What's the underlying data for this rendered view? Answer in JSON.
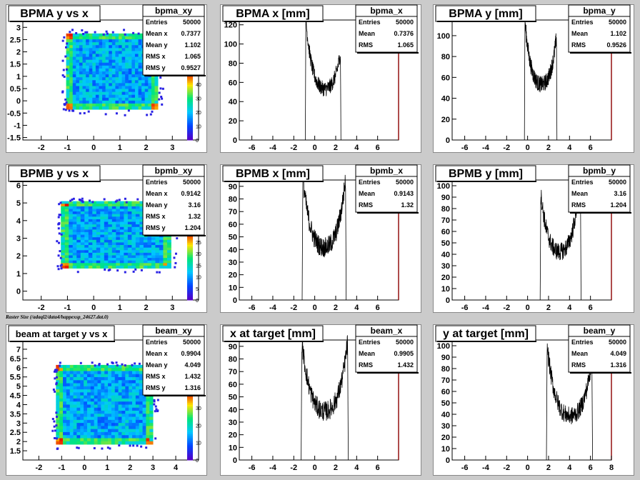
{
  "canvas_label": "Raster Size (/adaql2/data4/happexsp_24627.dat.0)",
  "chart_data": [
    {
      "type": "heatmap",
      "title": "BPMA y vs x",
      "stats_name": "bpma_xy",
      "stats": [
        [
          "Entries",
          "50000"
        ],
        [
          "Mean x",
          "0.7377"
        ],
        [
          "Mean y",
          "1.102"
        ],
        [
          "RMS x",
          "1.065"
        ],
        [
          "RMS y",
          "0.9527"
        ]
      ],
      "xlim": [
        -2.7,
        4.0
      ],
      "ylim": [
        -1.6,
        3.3
      ],
      "xticks": [
        -2,
        -1,
        0,
        1,
        2,
        3
      ],
      "yticks": [
        -1.5,
        -1,
        -0.5,
        0,
        0.5,
        1,
        1.5,
        2,
        2.5,
        3
      ],
      "region": {
        "x": [
          -1.05,
          2.45
        ],
        "y": [
          -0.35,
          2.75
        ]
      },
      "colorbar": {
        "max": 50,
        "ticks": [
          0,
          10,
          20,
          30,
          40
        ]
      }
    },
    {
      "type": "line",
      "title": "BPMA x [mm]",
      "stats_name": "bpma_x",
      "stats": [
        [
          "Entries",
          "50000"
        ],
        [
          "Mean",
          "0.7376"
        ],
        [
          "RMS",
          "1.065"
        ]
      ],
      "xlim": [
        -7.2,
        8.0
      ],
      "ylim": [
        0,
        125
      ],
      "xticks": [
        -6,
        -4,
        -2,
        0,
        2,
        4,
        6
      ],
      "yticks": [
        0,
        20,
        40,
        60,
        80,
        100,
        120
      ],
      "profile": {
        "start": -0.9,
        "end": 2.5,
        "peak_left": 115,
        "peak_right": 85,
        "valley": 45,
        "noise": 8
      }
    },
    {
      "type": "line",
      "title": "BPMA y [mm]",
      "stats_name": "bpma_y",
      "stats": [
        [
          "Entries",
          "50000"
        ],
        [
          "Mean",
          "1.102"
        ],
        [
          "RMS",
          "0.9526"
        ]
      ],
      "xlim": [
        -7.2,
        8.0
      ],
      "ylim": [
        0,
        115
      ],
      "xticks": [
        -6,
        -4,
        -2,
        0,
        2,
        4,
        6
      ],
      "yticks": [
        0,
        20,
        40,
        60,
        80,
        100
      ],
      "profile": {
        "start": -0.3,
        "end": 2.8,
        "peak_left": 105,
        "peak_right": 92,
        "valley": 45,
        "noise": 8
      }
    },
    {
      "type": "heatmap",
      "title": "BPMB y vs x",
      "stats_name": "bpmb_xy",
      "stats": [
        [
          "Entries",
          "50000"
        ],
        [
          "Mean x",
          "0.9142"
        ],
        [
          "Mean y",
          "3.16"
        ],
        [
          "RMS x",
          "1.32"
        ],
        [
          "RMS y",
          "1.204"
        ]
      ],
      "xlim": [
        -2.7,
        4.0
      ],
      "ylim": [
        -0.5,
        6.3
      ],
      "xticks": [
        -2,
        -1,
        0,
        1,
        2,
        3
      ],
      "yticks": [
        0,
        1,
        2,
        3,
        4,
        5,
        6
      ],
      "region": {
        "x": [
          -1.25,
          2.95
        ],
        "y": [
          1.3,
          5.1
        ]
      },
      "colorbar": {
        "max": 30,
        "ticks": [
          0,
          5,
          10,
          15,
          20,
          25
        ]
      }
    },
    {
      "type": "line",
      "title": "BPMB x [mm]",
      "stats_name": "bpmb_x",
      "stats": [
        [
          "Entries",
          "50000"
        ],
        [
          "Mean",
          "0.9143"
        ],
        [
          "RMS",
          "1.32"
        ]
      ],
      "xlim": [
        -7.2,
        8.0
      ],
      "ylim": [
        0,
        95
      ],
      "xticks": [
        -6,
        -4,
        -2,
        0,
        2,
        4,
        6
      ],
      "yticks": [
        0,
        10,
        20,
        30,
        40,
        50,
        60,
        70,
        80,
        90
      ],
      "profile": {
        "start": -1.2,
        "end": 3.0,
        "peak_left": 88,
        "peak_right": 88,
        "valley": 33,
        "noise": 8
      }
    },
    {
      "type": "line",
      "title": "BPMB y [mm]",
      "stats_name": "bpmb_y",
      "stats": [
        [
          "Entries",
          "50000"
        ],
        [
          "Mean",
          "3.16"
        ],
        [
          "RMS",
          "1.204"
        ]
      ],
      "xlim": [
        -7.2,
        8.0
      ],
      "ylim": [
        0,
        105
      ],
      "xticks": [
        -6,
        -4,
        -2,
        0,
        2,
        4,
        6
      ],
      "yticks": [
        0,
        10,
        20,
        30,
        40,
        50,
        60,
        70,
        80,
        90,
        100
      ],
      "profile": {
        "start": 1.2,
        "end": 5.1,
        "peak_left": 85,
        "peak_right": 100,
        "valley": 33,
        "noise": 8
      }
    },
    {
      "type": "heatmap",
      "title": "beam at target y vs x",
      "stats_name": "beam_xy",
      "stats": [
        [
          "Entries",
          "50000"
        ],
        [
          "Mean x",
          "0.9904"
        ],
        [
          "Mean y",
          "4.049"
        ],
        [
          "RMS x",
          "1.432"
        ],
        [
          "RMS y",
          "1.316"
        ]
      ],
      "xlim": [
        -2.7,
        5.0
      ],
      "ylim": [
        1.0,
        7.5
      ],
      "xticks": [
        -2,
        -1,
        0,
        1,
        2,
        3,
        4
      ],
      "yticks": [
        1.5,
        2,
        2.5,
        3,
        3.5,
        4,
        4.5,
        5,
        5.5,
        6,
        6.5,
        7
      ],
      "region": {
        "x": [
          -1.25,
          3.0
        ],
        "y": [
          1.85,
          6.15
        ]
      },
      "colorbar": {
        "max": 40,
        "ticks": [
          0,
          10,
          20,
          30
        ]
      }
    },
    {
      "type": "line",
      "title": "x at target [mm]",
      "stats_name": "beam_x",
      "stats": [
        [
          "Entries",
          "50000"
        ],
        [
          "Mean",
          "0.9905"
        ],
        [
          "RMS",
          "1.432"
        ]
      ],
      "xlim": [
        -7.2,
        8.0
      ],
      "ylim": [
        0,
        95
      ],
      "xticks": [
        -6,
        -4,
        -2,
        0,
        2,
        4,
        6
      ],
      "yticks": [
        0,
        10,
        20,
        30,
        40,
        50,
        60,
        70,
        80,
        90
      ],
      "profile": {
        "start": -1.3,
        "end": 3.2,
        "peak_left": 85,
        "peak_right": 85,
        "valley": 30,
        "noise": 8
      }
    },
    {
      "type": "line",
      "title": "y at target [mm]",
      "stats_name": "beam_y",
      "stats": [
        [
          "Entries",
          "50000"
        ],
        [
          "Mean",
          "4.049"
        ],
        [
          "RMS",
          "1.316"
        ]
      ],
      "xlim": [
        -7.2,
        8.0
      ],
      "ylim": [
        0,
        105
      ],
      "xticks": [
        -6,
        -4,
        -2,
        0,
        2,
        4,
        6,
        8
      ],
      "yticks": [
        0,
        10,
        20,
        30,
        40,
        50,
        60,
        70,
        80,
        90,
        100
      ],
      "profile": {
        "start": 1.8,
        "end": 6.2,
        "peak_left": 90,
        "peak_right": 80,
        "valley": 30,
        "noise": 8
      }
    }
  ]
}
